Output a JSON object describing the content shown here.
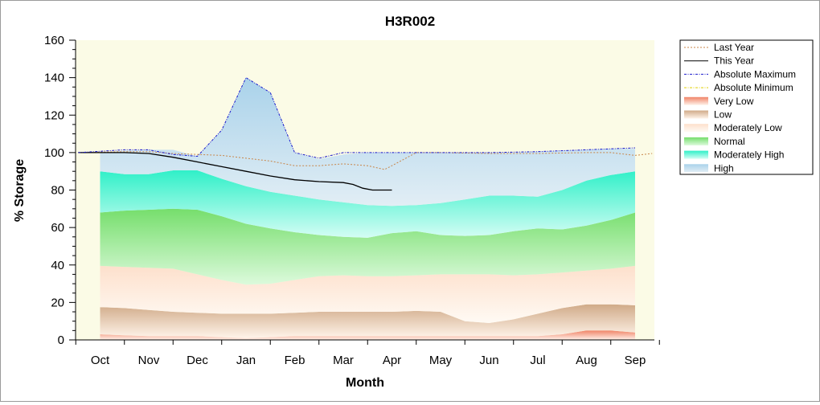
{
  "chart_data": {
    "type": "area",
    "title": "H3R002",
    "xlabel": "Month",
    "ylabel": "% Storage",
    "categories": [
      "Oct",
      "Nov",
      "Dec",
      "Jan",
      "Feb",
      "Mar",
      "Apr",
      "May",
      "Jun",
      "Jul",
      "Aug",
      "Sep"
    ],
    "ylim": [
      0,
      160
    ],
    "yticks": [
      0,
      20,
      40,
      60,
      80,
      100,
      120,
      140,
      160
    ],
    "grid": false,
    "legend_position": "right",
    "colors": {
      "plot_background": "#fbfbe6",
      "last_year": "#c8864a",
      "this_year": "#000000",
      "abs_max": "#1a1acc",
      "abs_min": "#e0d000"
    },
    "band_boundaries": {
      "x": [
        0.0,
        0.5,
        1.0,
        1.5,
        2.0,
        2.5,
        3.0,
        3.5,
        4.0,
        4.5,
        5.0,
        5.5,
        6.0,
        6.5,
        7.0,
        7.5,
        8.0,
        8.5,
        9.0,
        9.5,
        10.0,
        10.5,
        11.0
      ],
      "very_low": [
        3,
        2.5,
        2,
        2,
        2,
        1.5,
        1,
        1.5,
        2,
        2,
        2,
        2,
        2,
        2,
        2,
        2,
        2,
        2,
        2,
        3,
        5,
        5,
        4
      ],
      "low": [
        17.5,
        17,
        16,
        15,
        14.5,
        14,
        14,
        14,
        14.5,
        15,
        15,
        15,
        15,
        15.5,
        15,
        10,
        9,
        11,
        14,
        17,
        19,
        19,
        18.5
      ],
      "moderately_low": [
        39.5,
        39,
        38.5,
        38,
        35,
        32,
        29.5,
        30,
        32,
        34,
        34.5,
        34,
        34,
        34.5,
        35,
        35,
        35,
        34.5,
        35,
        36,
        37,
        38,
        39.5
      ],
      "normal": [
        68,
        69,
        69.5,
        70,
        69.5,
        66,
        62,
        59.5,
        57.5,
        56,
        55,
        54.5,
        57,
        58,
        56,
        55.5,
        56,
        58,
        59.5,
        59,
        61,
        64,
        68
      ],
      "moderately_high": [
        90,
        88.5,
        88.5,
        90.5,
        90.5,
        86,
        82,
        79,
        77,
        75,
        73.5,
        72,
        71.5,
        72,
        73,
        75,
        77,
        77,
        76.5,
        80,
        85,
        88,
        90
      ],
      "high": [
        100,
        101,
        101.5,
        101.5,
        98,
        112,
        140,
        132,
        100,
        96.5,
        99,
        100,
        100,
        100,
        100,
        100,
        100,
        100,
        100.5,
        101,
        101.5,
        102,
        102
      ]
    },
    "series": [
      {
        "name": "Last Year",
        "x": [
          -0.45,
          0.5,
          1.0,
          1.5,
          2.0,
          2.5,
          3.0,
          3.5,
          4.0,
          4.5,
          5.0,
          5.5,
          5.85,
          6.0,
          6.5,
          7.0,
          8.0,
          9.0,
          10.0,
          10.5,
          11.0,
          11.35
        ],
        "values": [
          100,
          100.5,
          100.5,
          99.5,
          99,
          98.5,
          97,
          95.5,
          93,
          93,
          94,
          93,
          91,
          93,
          100,
          100,
          99.5,
          99.5,
          100,
          100,
          98.5,
          99.5
        ]
      },
      {
        "name": "This Year",
        "x": [
          -0.45,
          0.5,
          1.0,
          1.5,
          2.0,
          2.5,
          3.0,
          3.5,
          4.0,
          4.5,
          5.0,
          5.2,
          5.4,
          5.6,
          5.7,
          6.0
        ],
        "values": [
          100,
          100,
          99.5,
          97.5,
          95,
          92.5,
          90,
          87.5,
          85.5,
          84.5,
          84,
          83,
          81,
          80,
          80,
          80
        ]
      },
      {
        "name": "Absolute Maximum",
        "x": [
          -0.45,
          0.5,
          1.0,
          1.5,
          2.0,
          2.5,
          3.0,
          3.5,
          4.0,
          4.5,
          5.0,
          5.5,
          6.0,
          6.5,
          7.0,
          8.0,
          9.0,
          10.0,
          11.0
        ],
        "values": [
          100,
          101.5,
          101.5,
          99,
          98,
          112,
          140,
          132,
          100,
          97,
          100,
          100,
          100,
          100,
          100,
          100,
          100.5,
          101.5,
          102.5
        ]
      },
      {
        "name": "Absolute Minimum",
        "x": [],
        "values": []
      }
    ],
    "legend": [
      {
        "label": "Last Year",
        "kind": "line",
        "color": "#c8864a",
        "dash": "2,2"
      },
      {
        "label": "This Year",
        "kind": "line",
        "color": "#000000",
        "dash": ""
      },
      {
        "label": "Absolute Maximum",
        "kind": "line",
        "color": "#1a1acc",
        "dash": "3,1.5,1,1.5"
      },
      {
        "label": "Absolute Minimum",
        "kind": "line",
        "color": "#e0d000",
        "dash": "3,1.5,1,1.5"
      },
      {
        "label": "Very Low",
        "kind": "band",
        "colors": [
          "#f08468",
          "#fff2ea"
        ]
      },
      {
        "label": "Low",
        "kind": "band",
        "colors": [
          "#d0aa88",
          "#fff4ea"
        ]
      },
      {
        "label": "Moderately Low",
        "kind": "band",
        "colors": [
          "#fde0cc",
          "#fffaf4"
        ]
      },
      {
        "label": "Normal",
        "kind": "band",
        "colors": [
          "#76de6c",
          "#dcfadc"
        ]
      },
      {
        "label": "Moderately High",
        "kind": "band",
        "colors": [
          "#30f0c8",
          "#d4fdf4"
        ]
      },
      {
        "label": "High",
        "kind": "band",
        "colors": [
          "#a9d2ea",
          "#e2eef5"
        ]
      }
    ]
  }
}
